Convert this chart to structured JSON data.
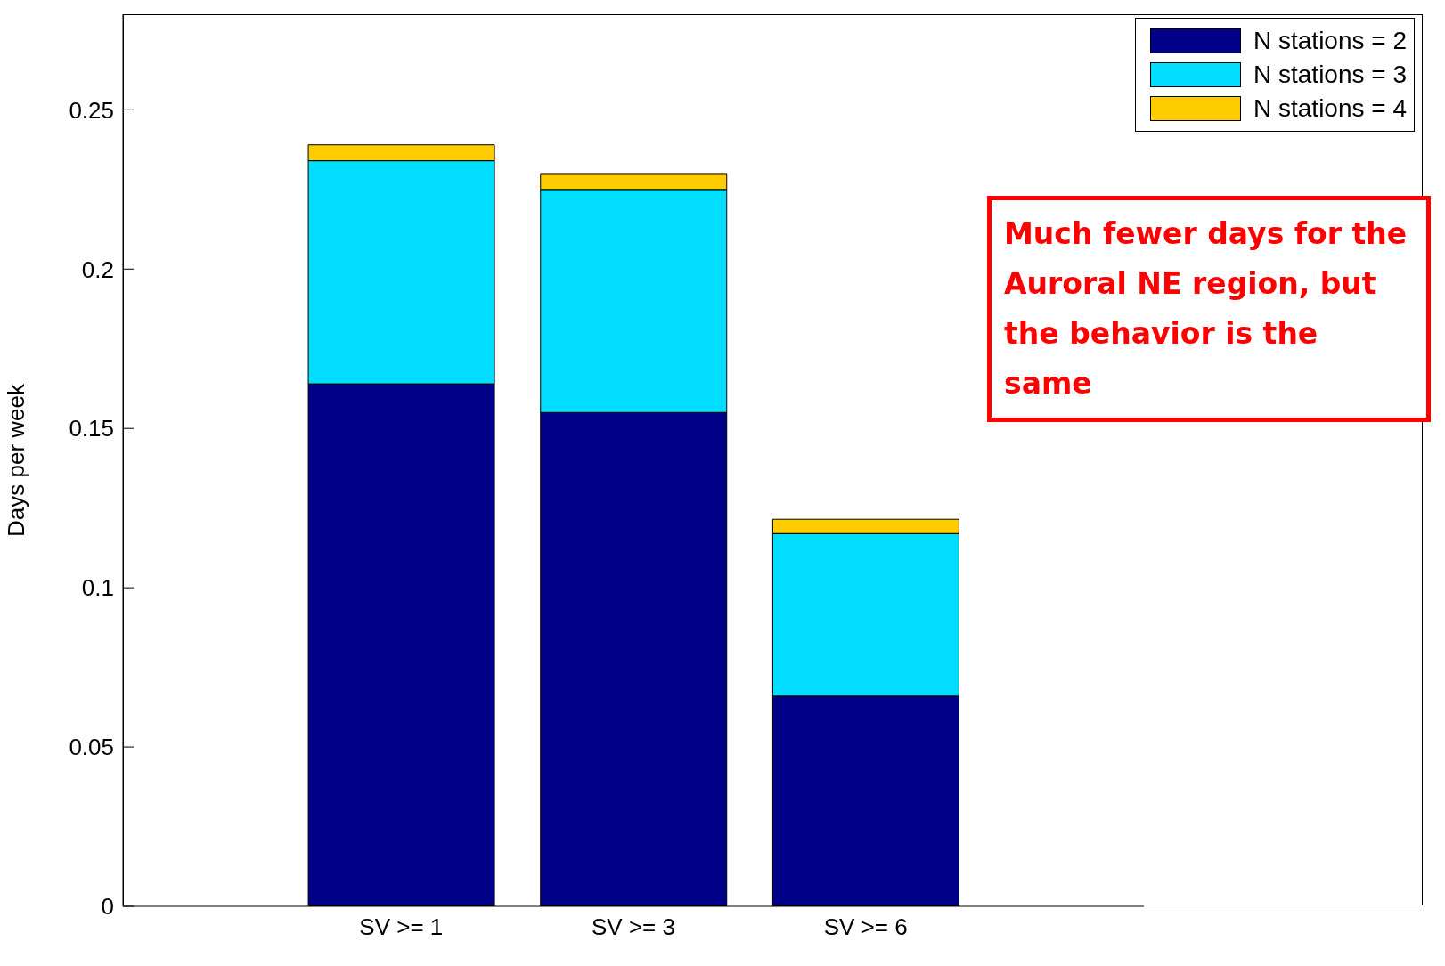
{
  "chart_data": {
    "type": "bar",
    "stacked": true,
    "ylabel": "Days per week",
    "categories": [
      "SV >= 1",
      "SV >= 3",
      "SV >= 6"
    ],
    "series": [
      {
        "name": "N stations = 2",
        "color": "#000088",
        "values": [
          0.164,
          0.155,
          0.066
        ]
      },
      {
        "name": "N stations = 3",
        "color": "#00ddff",
        "values": [
          0.07,
          0.07,
          0.051
        ]
      },
      {
        "name": "N stations = 4",
        "color": "#ffcc00",
        "values": [
          0.005,
          0.005,
          0.0045
        ]
      }
    ],
    "ylim": [
      0,
      0.28
    ],
    "yticks": [
      0,
      0.05,
      0.1,
      0.15,
      0.2,
      0.25
    ],
    "legend": "top right",
    "annotations": [
      "Much fewer days for the Auroral NE region, but the behavior is the same"
    ]
  }
}
